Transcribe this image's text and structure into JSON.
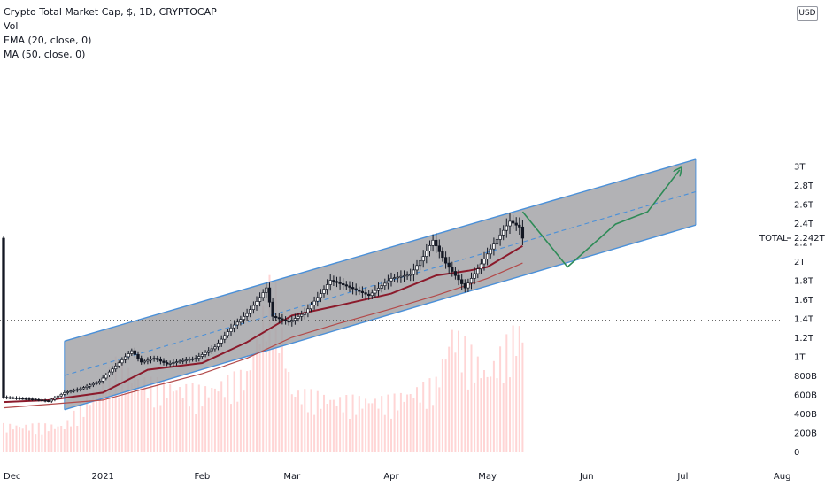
{
  "legend": {
    "title": "Crypto Total Market Cap, $, 1D, CRYPTOCAP",
    "vol": "Vol",
    "ema": "EMA (20, close, 0)",
    "ma": "MA (50, close, 0)"
  },
  "currency_badge": "USD",
  "price_marker": {
    "name": "TOTAL",
    "value": "2.242T"
  },
  "colors": {
    "channel_fill": "#a5a5a8",
    "channel_line": "#4a90d9",
    "ema": "#8b1a2b",
    "ma": "#b24a4a",
    "projection": "#2e8b57",
    "candles": "#131722",
    "volume": "#ffd5d5"
  },
  "chart_data": {
    "type": "line",
    "title": "Crypto Total Market Cap, $, 1D, CRYPTOCAP",
    "x_ticks": [
      "Dec",
      "2021",
      "Feb",
      "Mar",
      "Apr",
      "May",
      "Jun",
      "Jul",
      "Aug"
    ],
    "y_ticks": [
      "3T",
      "2.8T",
      "2.6T",
      "2.4T",
      "2.2T",
      "2T",
      "1.8T",
      "1.6T",
      "1.4T",
      "1.2T",
      "1T",
      "800B",
      "600B",
      "400B",
      "200B",
      "0"
    ],
    "y_unit": "USD",
    "ylim": [
      0,
      3.1
    ],
    "x_range": [
      "2020-12-01",
      "2021-08-10"
    ],
    "price_series": {
      "name": "TOTAL",
      "points": [
        [
          "2020-12-01",
          0.57
        ],
        [
          "2020-12-10",
          0.55
        ],
        [
          "2020-12-15",
          0.53
        ],
        [
          "2020-12-20",
          0.62
        ],
        [
          "2020-12-25",
          0.66
        ],
        [
          "2020-12-31",
          0.74
        ],
        [
          "2021-01-05",
          0.9
        ],
        [
          "2021-01-10",
          1.06
        ],
        [
          "2021-01-13",
          0.94
        ],
        [
          "2021-01-17",
          0.98
        ],
        [
          "2021-01-21",
          0.92
        ],
        [
          "2021-01-25",
          0.95
        ],
        [
          "2021-01-30",
          0.98
        ],
        [
          "2021-02-05",
          1.1
        ],
        [
          "2021-02-10",
          1.3
        ],
        [
          "2021-02-15",
          1.45
        ],
        [
          "2021-02-19",
          1.62
        ],
        [
          "2021-02-21",
          1.72
        ],
        [
          "2021-02-23",
          1.42
        ],
        [
          "2021-02-28",
          1.36
        ],
        [
          "2021-03-05",
          1.46
        ],
        [
          "2021-03-10",
          1.66
        ],
        [
          "2021-03-13",
          1.8
        ],
        [
          "2021-03-18",
          1.74
        ],
        [
          "2021-03-25",
          1.64
        ],
        [
          "2021-04-01",
          1.82
        ],
        [
          "2021-04-07",
          1.86
        ],
        [
          "2021-04-11",
          2.05
        ],
        [
          "2021-04-14",
          2.22
        ],
        [
          "2021-04-18",
          1.98
        ],
        [
          "2021-04-24",
          1.72
        ],
        [
          "2021-04-28",
          1.92
        ],
        [
          "2021-05-03",
          2.18
        ],
        [
          "2021-05-08",
          2.42
        ],
        [
          "2021-05-11",
          2.36
        ],
        [
          "2021-05-12",
          2.242
        ]
      ]
    },
    "ema20": {
      "name": "EMA (20, close, 0)",
      "points": [
        [
          "2020-12-01",
          0.52
        ],
        [
          "2020-12-15",
          0.54
        ],
        [
          "2021-01-01",
          0.62
        ],
        [
          "2021-01-15",
          0.86
        ],
        [
          "2021-02-01",
          0.93
        ],
        [
          "2021-02-15",
          1.15
        ],
        [
          "2021-03-01",
          1.43
        ],
        [
          "2021-03-15",
          1.53
        ],
        [
          "2021-04-01",
          1.66
        ],
        [
          "2021-04-15",
          1.85
        ],
        [
          "2021-04-25",
          1.9
        ],
        [
          "2021-05-01",
          1.94
        ],
        [
          "2021-05-12",
          2.16
        ]
      ]
    },
    "ma50": {
      "name": "MA (50, close, 0)",
      "points": [
        [
          "2020-12-01",
          0.46
        ],
        [
          "2021-01-01",
          0.54
        ],
        [
          "2021-01-15",
          0.67
        ],
        [
          "2021-02-01",
          0.82
        ],
        [
          "2021-02-15",
          0.98
        ],
        [
          "2021-03-01",
          1.2
        ],
        [
          "2021-03-15",
          1.34
        ],
        [
          "2021-04-01",
          1.5
        ],
        [
          "2021-04-15",
          1.64
        ],
        [
          "2021-05-01",
          1.82
        ],
        [
          "2021-05-12",
          1.98
        ]
      ]
    },
    "volume": {
      "name": "Vol",
      "points": [
        [
          "2020-12-20",
          0.03
        ],
        [
          "2021-01-05",
          0.1
        ],
        [
          "2021-01-15",
          0.08
        ],
        [
          "2021-02-01",
          0.07
        ],
        [
          "2021-02-15",
          0.09
        ],
        [
          "2021-02-23",
          0.2
        ],
        [
          "2021-03-01",
          0.07
        ],
        [
          "2021-03-15",
          0.06
        ],
        [
          "2021-04-01",
          0.06
        ],
        [
          "2021-04-15",
          0.08
        ],
        [
          "2021-04-20",
          0.14
        ],
        [
          "2021-05-01",
          0.09
        ],
        [
          "2021-05-10",
          0.14
        ]
      ]
    },
    "channel": {
      "upper": [
        [
          "2020-12-20",
          1.16
        ],
        [
          "2021-07-05",
          3.07
        ]
      ],
      "lower": [
        [
          "2020-12-20",
          0.44
        ],
        [
          "2021-07-05",
          2.38
        ]
      ],
      "mid": [
        [
          "2020-12-20",
          0.8
        ],
        [
          "2021-07-05",
          2.73
        ]
      ]
    },
    "projection": {
      "points": [
        [
          "2021-05-12",
          2.52
        ],
        [
          "2021-05-26",
          1.94
        ],
        [
          "2021-06-10",
          2.39
        ],
        [
          "2021-06-20",
          2.52
        ],
        [
          "2021-06-30",
          2.96
        ]
      ]
    },
    "price_line_level": 1.38,
    "grid": false,
    "legend_position": "top-left"
  }
}
